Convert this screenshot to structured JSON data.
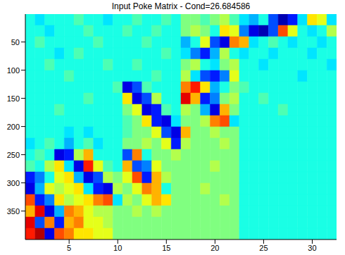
{
  "chart_data": {
    "type": "heatmap",
    "title": "Input Poke Matrix - Cond=26.684586",
    "x": [
      1,
      2,
      3,
      4,
      5,
      6,
      7,
      8,
      9,
      10,
      11,
      12,
      13,
      14,
      15,
      16,
      17,
      18,
      19,
      20,
      21,
      22,
      23,
      24,
      25,
      26,
      27,
      28,
      29,
      30,
      31,
      32
    ],
    "y_bins": [
      0.5,
      20.5,
      40.5,
      60.5,
      80.5,
      100.5,
      120.5,
      140.5,
      160.5,
      180.5,
      200.5,
      220.5,
      240.5,
      260.5,
      280.5,
      300.5,
      320.5,
      340.5,
      360.5,
      380.5,
      400.5
    ],
    "xlim": [
      0.5,
      32.5
    ],
    "ylim": [
      0.5,
      400.5
    ],
    "xticks": [
      5,
      10,
      15,
      20,
      25,
      30
    ],
    "yticks": [
      50,
      100,
      150,
      200,
      250,
      300,
      350
    ],
    "clim": [
      -1,
      1
    ],
    "cells": [
      [
        -0.2,
        -0.3,
        -0.2,
        -0.2,
        -0.2,
        -0.1,
        -0.2,
        -0.2,
        -0.3,
        -0.2,
        -0.2,
        -0.1,
        -0.2,
        -0.2,
        -0.1,
        -0.2,
        0,
        0,
        -0.1,
        0,
        0.1,
        -0.1,
        -0.3,
        -0.4,
        -0.2,
        -0.6,
        -0.9,
        -0.7,
        -0.3,
        0.3,
        0.2,
        -0.3
      ],
      [
        -0.2,
        -0.2,
        -0.3,
        -0.2,
        -0.2,
        -0.2,
        -0.1,
        -0.2,
        -0.2,
        -0.2,
        -0.1,
        -0.2,
        -0.2,
        -0.1,
        -0.2,
        -0.2,
        0,
        0.1,
        0,
        -0.2,
        0.3,
        0.2,
        -0.5,
        -0.8,
        -0.9,
        -0.6,
        0.6,
        0.2,
        -0.2,
        -0.3,
        -0.2,
        0.1
      ],
      [
        -0.2,
        -0.1,
        -0.2,
        -0.2,
        -0.2,
        -0.2,
        -0.2,
        -0.1,
        -0.2,
        -0.2,
        -0.2,
        -0.2,
        -0.1,
        -0.2,
        -0.2,
        -0.2,
        -0.4,
        -0.2,
        0.2,
        -0.6,
        -0.8,
        0.5,
        0.4,
        -0.3,
        -0.2,
        -0.1,
        -0.2,
        -0.3,
        -0.2,
        -0.2,
        -0.3,
        -0.2
      ],
      [
        -0.2,
        -0.2,
        -0.2,
        -0.3,
        -0.2,
        -0.1,
        -0.2,
        -0.2,
        -0.2,
        -0.2,
        -0.2,
        -0.2,
        -0.2,
        -0.2,
        -0.1,
        -0.2,
        -0.3,
        -0.5,
        -0.7,
        -0.4,
        0.1,
        -0.2,
        -0.3,
        -0.2,
        -0.2,
        -0.3,
        -0.2,
        -0.2,
        -0.2,
        -0.3,
        -0.2,
        -0.2
      ],
      [
        -0.2,
        -0.2,
        -0.1,
        -0.2,
        -0.2,
        -0.2,
        -0.2,
        -0.2,
        -0.1,
        -0.2,
        -0.2,
        -0.1,
        -0.2,
        -0.2,
        -0.2,
        -0.2,
        0,
        0.1,
        -0.2,
        -0.3,
        0,
        0.1,
        -0.2,
        -0.2,
        -0.3,
        -0.2,
        -0.2,
        -0.2,
        -0.2,
        -0.2,
        -0.2,
        -0.3
      ],
      [
        -0.2,
        -0.2,
        -0.2,
        -0.2,
        -0.1,
        -0.2,
        -0.2,
        -0.2,
        -0.2,
        -0.2,
        -0.2,
        -0.2,
        -0.2,
        -0.1,
        -0.2,
        -0.2,
        0.1,
        -0.3,
        -0.6,
        -0.7,
        -0.5,
        0.2,
        -0.2,
        -0.2,
        -0.2,
        -0.2,
        -0.2,
        -0.2,
        -0.3,
        -0.2,
        -0.2,
        -0.2
      ],
      [
        -0.2,
        -0.2,
        -0.2,
        -0.2,
        -0.2,
        -0.2,
        -0.2,
        -0.2,
        -0.2,
        -0.1,
        -0.8,
        -0.6,
        -0.1,
        -0.2,
        -0.2,
        -0.2,
        0.5,
        0.7,
        0.3,
        -0.4,
        -0.2,
        0,
        -0.1,
        -0.2,
        -0.2,
        -0.2,
        -0.2,
        -0.2,
        -0.2,
        -0.2,
        -0.2,
        -0.2
      ],
      [
        -0.2,
        -0.2,
        -0.2,
        -0.2,
        -0.2,
        -0.2,
        -0.1,
        -0.2,
        -0.2,
        -0.2,
        0.3,
        -0.8,
        -0.6,
        0.1,
        -0.2,
        -0.2,
        0.8,
        0.4,
        -0.7,
        -0.5,
        0,
        0.1,
        -0.2,
        -0.2,
        -0.1,
        -0.2,
        -0.2,
        -0.2,
        -0.2,
        -0.2,
        -0.2,
        -0.2
      ],
      [
        -0.2,
        -0.2,
        -0.2,
        -0.1,
        -0.2,
        -0.2,
        -0.2,
        -0.2,
        -0.2,
        -0.2,
        0,
        0.2,
        -0.8,
        -0.7,
        -0.1,
        -0.2,
        0.1,
        0,
        -0.4,
        -0.8,
        0.4,
        0,
        -0.2,
        -0.2,
        -0.2,
        -0.2,
        -0.1,
        -0.2,
        -0.2,
        -0.2,
        -0.2,
        -0.2
      ],
      [
        -0.2,
        -0.2,
        -0.2,
        -0.2,
        -0.2,
        -0.2,
        -0.2,
        -0.2,
        -0.2,
        -0.2,
        -0.1,
        0,
        0.3,
        -0.7,
        -0.8,
        -0.3,
        0,
        0,
        0.1,
        0.5,
        0.6,
        -0.3,
        -0.2,
        -0.2,
        -0.2,
        -0.2,
        -0.2,
        -0.2,
        -0.2,
        -0.2,
        -0.2,
        -0.2
      ],
      [
        -0.2,
        -0.2,
        -0.2,
        -0.2,
        -0.3,
        -0.2,
        -0.3,
        -0.2,
        -0.2,
        -0.2,
        -0.1,
        0,
        0,
        0.2,
        -0.6,
        -0.8,
        0.4,
        0,
        0,
        0.1,
        0,
        0,
        -0.2,
        -0.2,
        -0.2,
        -0.2,
        -0.2,
        -0.2,
        -0.2,
        -0.2,
        -0.2,
        -0.2
      ],
      [
        -0.3,
        -0.2,
        -0.1,
        -0.2,
        -0.4,
        -0.2,
        -0.1,
        -0.3,
        -0.2,
        -0.2,
        0,
        0,
        0.1,
        0,
        0.2,
        -0.7,
        0.1,
        0,
        0,
        0,
        0.1,
        0,
        -0.2,
        -0.2,
        -0.2,
        -0.2,
        -0.2,
        -0.2,
        -0.2,
        -0.2,
        -0.2,
        -0.2
      ],
      [
        -0.2,
        -0.1,
        -0.2,
        -0.8,
        -0.7,
        0.1,
        0.4,
        -0.2,
        -0.2,
        -0.2,
        -0.6,
        0.5,
        -0.2,
        0,
        0,
        0.1,
        0,
        0,
        0,
        0,
        0,
        0,
        -0.2,
        -0.2,
        -0.2,
        -0.2,
        -0.2,
        -0.2,
        -0.2,
        -0.2,
        -0.2,
        -0.2
      ],
      [
        -0.1,
        -0.2,
        0.1,
        0.3,
        -0.3,
        -0.8,
        0.7,
        0.2,
        -0.1,
        -0.2,
        0.4,
        -0.6,
        -0.5,
        0.2,
        0,
        0,
        0,
        0,
        0,
        0.1,
        0,
        0,
        -0.2,
        -0.2,
        -0.2,
        -0.2,
        -0.2,
        -0.2,
        -0.2,
        -0.2,
        -0.2,
        -0.2
      ],
      [
        -0.7,
        -0.5,
        -0.2,
        0.2,
        0.3,
        -0.4,
        -0.8,
        -0.6,
        0.1,
        0,
        0.2,
        0.6,
        -0.7,
        0.4,
        0.1,
        0,
        0,
        0,
        0,
        0,
        0,
        0,
        -0.2,
        -0.2,
        -0.2,
        -0.2,
        -0.2,
        -0.2,
        -0.2,
        -0.2,
        -0.2,
        -0.2
      ],
      [
        -0.8,
        -0.4,
        0.2,
        0.1,
        0.2,
        0.3,
        -0.3,
        -0.7,
        -0.8,
        0.1,
        0,
        0.2,
        0.5,
        0.4,
        -0.2,
        0,
        0,
        0,
        0.1,
        0,
        0,
        0,
        -0.2,
        -0.2,
        -0.2,
        -0.2,
        -0.2,
        -0.2,
        -0.2,
        -0.2,
        -0.2,
        -0.2
      ],
      [
        0.6,
        -0.7,
        -0.5,
        0.3,
        0.1,
        0.2,
        0.3,
        0.5,
        0.6,
        -0.3,
        0.1,
        0,
        0.2,
        0.4,
        0.3,
        0,
        0,
        0,
        0,
        0,
        0.1,
        0,
        -0.2,
        -0.2,
        -0.2,
        -0.2,
        -0.2,
        -0.2,
        -0.2,
        -0.2,
        -0.2,
        -0.2
      ],
      [
        0.4,
        0.8,
        -0.8,
        -0.4,
        0.5,
        0.4,
        0.2,
        0.1,
        0.1,
        0,
        0,
        0.1,
        0,
        0.1,
        0,
        0,
        0,
        0,
        0,
        0,
        0,
        0,
        -0.2,
        -0.2,
        -0.2,
        -0.2,
        -0.2,
        -0.2,
        -0.2,
        -0.2,
        -0.2,
        -0.2
      ],
      [
        0.8,
        -0.6,
        0.5,
        -0.7,
        0.4,
        0.5,
        0.2,
        0.2,
        0.1,
        0,
        0,
        0,
        0,
        0,
        0,
        0,
        0,
        0,
        0,
        0,
        0,
        0,
        -0.2,
        -0.2,
        -0.2,
        -0.2,
        -0.2,
        -0.2,
        -0.2,
        -0.2,
        -0.2,
        -0.2
      ],
      [
        0.7,
        0.9,
        -0.8,
        0.6,
        0.5,
        0.3,
        0.3,
        0.2,
        0.2,
        0,
        0,
        0,
        0,
        0,
        0,
        0,
        0,
        0,
        0,
        0,
        0,
        0,
        -0.2,
        -0.2,
        -0.2,
        -0.2,
        -0.2,
        -0.2,
        -0.2,
        -0.2,
        -0.2,
        -0.2
      ]
    ]
  }
}
